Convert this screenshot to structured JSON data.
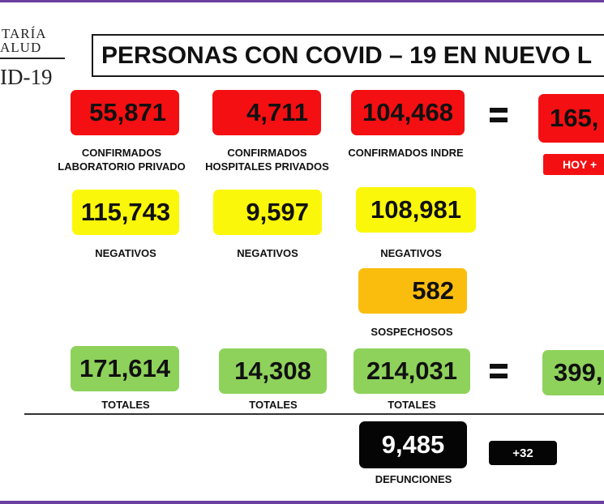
{
  "logo": {
    "line1": "TARÍA",
    "line2": "ALUD",
    "line3": "ID-19"
  },
  "title": "PERSONAS CON COVID – 19 EN NUEVO L",
  "confirmed": {
    "private_lab": {
      "value": "55,871",
      "label_line1": "CONFIRMADOS",
      "label_line2": "LABORATORIO PRIVADO"
    },
    "private_hospitals": {
      "value": "4,711",
      "label_line1": "CONFIRMADOS",
      "label_line2": "HOSPITALES PRIVADOS"
    },
    "indre": {
      "value": "104,468",
      "label_line1": "CONFIRMADOS INDRE"
    },
    "total": {
      "value": "165,",
      "hoy_label": "HOY +"
    }
  },
  "negatives": {
    "private_lab": {
      "value": "115,743",
      "label": "NEGATIVOS"
    },
    "private_hospitals": {
      "value": "9,597",
      "label": "NEGATIVOS"
    },
    "indre": {
      "value": "108,981",
      "label": "NEGATIVOS"
    }
  },
  "suspects": {
    "value": "582",
    "label": "SOSPECHOSOS"
  },
  "totals": {
    "private_lab": {
      "value": "171,614",
      "label": "TOTALES"
    },
    "private_hospitals": {
      "value": "14,308",
      "label": "TOTALES"
    },
    "indre": {
      "value": "214,031",
      "label": "TOTALES"
    },
    "grand_total": {
      "value": "399,"
    }
  },
  "deaths": {
    "value": "9,485",
    "label": "DEFUNCIONES",
    "today": "+32"
  },
  "colors": {
    "red": "#f40f12",
    "yellow": "#fbf70a",
    "orange": "#fbbd0d",
    "green": "#8ed25c",
    "black": "#050505",
    "frame": "#6b3fa0"
  }
}
